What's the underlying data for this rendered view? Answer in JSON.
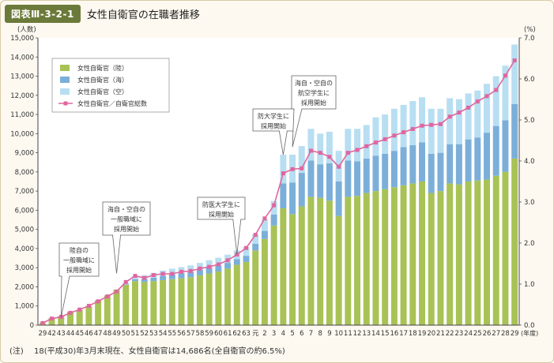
{
  "header": {
    "badge": "図表Ⅲ-3-2-1",
    "title": "女性自衛官の在職者推移"
  },
  "note": {
    "label": "(注)",
    "text": "18(平成30)年3月末現在、女性自衛官は14,686名(全自衛官の約6.5%)"
  },
  "chart_data": {
    "type": "bar",
    "stacked": true,
    "left_axis_unit": "(人数)",
    "right_axis_unit": "(%)",
    "x_unit": "(年度)",
    "ylim": [
      0,
      15000
    ],
    "y2lim": [
      0.0,
      7.0
    ],
    "yticks": [
      "0",
      "1,000",
      "2,000",
      "3,000",
      "4,000",
      "5,000",
      "6,000",
      "7,000",
      "8,000",
      "9,000",
      "10,000",
      "11,000",
      "12,000",
      "13,000",
      "14,000",
      "15,000"
    ],
    "y2ticks": [
      "0.0",
      "1.0",
      "2.0",
      "3.0",
      "4.0",
      "5.0",
      "6.0",
      "7.0"
    ],
    "grid": false,
    "legend_position": "top-left",
    "categories": [
      "29",
      "42",
      "43",
      "44",
      "45",
      "46",
      "47",
      "48",
      "49",
      "50",
      "51",
      "52",
      "53",
      "54",
      "55",
      "56",
      "57",
      "58",
      "59",
      "60",
      "61",
      "62",
      "63",
      "元",
      "2",
      "3",
      "4",
      "5",
      "6",
      "7",
      "8",
      "9",
      "10",
      "11",
      "12",
      "13",
      "14",
      "15",
      "16",
      "17",
      "18",
      "19",
      "20",
      "21",
      "22",
      "23",
      "24",
      "25",
      "26",
      "27",
      "28",
      "29"
    ],
    "series": [
      {
        "name": "女性自衛官（陸）",
        "color": "#a8c256",
        "values": [
          120,
          380,
          460,
          700,
          800,
          1000,
          1300,
          1550,
          1850,
          2100,
          2300,
          2250,
          2300,
          2350,
          2400,
          2450,
          2500,
          2600,
          2700,
          2800,
          2950,
          3150,
          3300,
          3900,
          4500,
          5200,
          6100,
          5800,
          6200,
          6700,
          6650,
          6500,
          5700,
          6700,
          6750,
          6900,
          7000,
          7100,
          7200,
          7300,
          7400,
          7500,
          6900,
          7000,
          7400,
          7350,
          7500,
          7550,
          7600,
          7800,
          8000,
          8700
        ]
      },
      {
        "name": "女性自衛官（海）",
        "color": "#7bafd9",
        "values": [
          0,
          0,
          0,
          0,
          0,
          0,
          0,
          0,
          0,
          30,
          100,
          150,
          180,
          220,
          250,
          260,
          270,
          280,
          290,
          300,
          300,
          300,
          320,
          350,
          420,
          580,
          1300,
          1650,
          1750,
          1900,
          1750,
          1950,
          1800,
          1900,
          1800,
          1800,
          1850,
          1850,
          1900,
          2000,
          2000,
          2050,
          2050,
          2000,
          2050,
          2100,
          2200,
          2250,
          2450,
          2600,
          2700,
          2850
        ]
      },
      {
        "name": "女性自衛官（空）",
        "color": "#b8def2",
        "values": [
          0,
          0,
          0,
          0,
          0,
          0,
          0,
          0,
          0,
          80,
          150,
          200,
          250,
          280,
          300,
          320,
          350,
          370,
          400,
          420,
          430,
          450,
          460,
          500,
          600,
          700,
          1500,
          1450,
          1400,
          1650,
          1600,
          1650,
          1600,
          1650,
          1700,
          1750,
          2000,
          2050,
          2200,
          2200,
          2300,
          2350,
          2350,
          2300,
          2400,
          2350,
          2400,
          2450,
          2550,
          2600,
          2850,
          3100
        ]
      },
      {
        "name": "女性自衛官／自衛官総数",
        "color": "#e0669e",
        "axis": "right",
        "values": [
          0.05,
          0.16,
          0.2,
          0.3,
          0.38,
          0.47,
          0.58,
          0.7,
          0.82,
          1.05,
          1.2,
          1.15,
          1.22,
          1.25,
          1.25,
          1.3,
          1.32,
          1.38,
          1.42,
          1.48,
          1.58,
          1.72,
          1.88,
          2.2,
          2.6,
          2.92,
          3.7,
          3.8,
          3.82,
          4.25,
          4.2,
          4.1,
          3.86,
          4.2,
          4.27,
          4.36,
          4.45,
          4.53,
          4.62,
          4.7,
          4.78,
          4.86,
          4.88,
          4.9,
          5.08,
          5.18,
          5.3,
          5.45,
          5.58,
          5.73,
          6.08,
          6.45
        ]
      }
    ],
    "annotations": [
      {
        "category": "43",
        "anchor_value": 400,
        "lines": [
          "陸自の",
          "一般職域に",
          "採用開始"
        ]
      },
      {
        "category": "49",
        "anchor_value": 2700,
        "lines": [
          "海自・空自の",
          "一般職域に",
          "採用開始"
        ]
      },
      {
        "category": "62",
        "anchor_value": 3700,
        "lines": [
          "防医大学生に",
          "採用開始"
        ]
      },
      {
        "category": "4",
        "anchor_value": 8900,
        "lines": [
          "防大学生に",
          "採用開始"
        ]
      },
      {
        "category": "5",
        "anchor_value": 9300,
        "lines": [
          "海自・空自の",
          "航空学生に",
          "採用開始"
        ]
      }
    ]
  }
}
